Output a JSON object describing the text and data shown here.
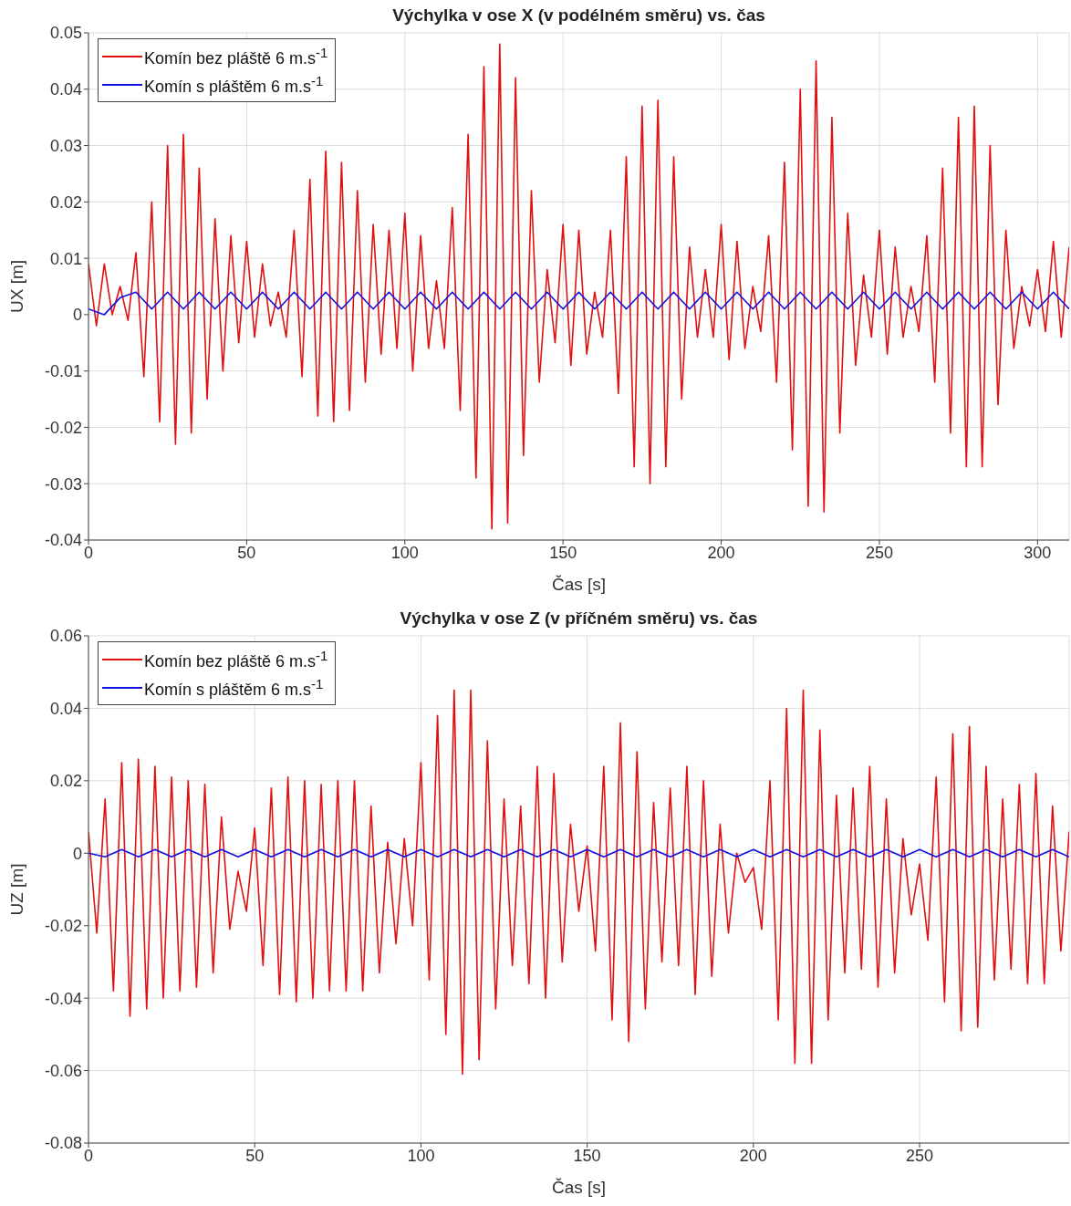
{
  "chart_data": [
    {
      "type": "line",
      "title": "Výchylka v ose X (v podélném směru) vs. čas",
      "xlabel": "Čas [s]",
      "ylabel": "UX [m]",
      "xlim": [
        0,
        310
      ],
      "xticks": [
        0,
        50,
        100,
        150,
        200,
        250,
        300
      ],
      "ylim": [
        -0.04,
        0.05
      ],
      "yticks": [
        -0.04,
        -0.03,
        -0.02,
        -0.01,
        0,
        0.01,
        0.02,
        0.03,
        0.04,
        0.05
      ],
      "grid": true,
      "legend": "top left",
      "line_style": "solid",
      "x": [
        0,
        2.5,
        5,
        7.5,
        10,
        12.5,
        15,
        17.5,
        20,
        22.5,
        25,
        27.5,
        30,
        32.5,
        35,
        37.5,
        40,
        42.5,
        45,
        47.5,
        50,
        52.5,
        55,
        57.5,
        60,
        62.5,
        65,
        67.5,
        70,
        72.5,
        75,
        77.5,
        80,
        82.5,
        85,
        87.5,
        90,
        92.5,
        95,
        97.5,
        100,
        102.5,
        105,
        107.5,
        110,
        112.5,
        115,
        117.5,
        120,
        122.5,
        125,
        127.5,
        130,
        132.5,
        135,
        137.5,
        140,
        142.5,
        145,
        147.5,
        150,
        152.5,
        155,
        157.5,
        160,
        162.5,
        165,
        167.5,
        170,
        172.5,
        175,
        177.5,
        180,
        182.5,
        185,
        187.5,
        190,
        192.5,
        195,
        197.5,
        200,
        202.5,
        205,
        207.5,
        210,
        212.5,
        215,
        217.5,
        220,
        222.5,
        225,
        227.5,
        230,
        232.5,
        235,
        237.5,
        240,
        242.5,
        245,
        247.5,
        250,
        252.5,
        255,
        257.5,
        260,
        262.5,
        265,
        267.5,
        270,
        272.5,
        275,
        277.5,
        280,
        282.5,
        285,
        287.5,
        290,
        292.5,
        295,
        297.5,
        300,
        302.5,
        305,
        307.5,
        310
      ],
      "series": [
        {
          "name": "Komín bez pláště 6 m.s$^{-1}$",
          "color": "#e01010",
          "values": [
            0.009,
            -0.002,
            0.009,
            0.0,
            0.005,
            -0.001,
            0.011,
            -0.011,
            0.02,
            -0.019,
            0.03,
            -0.023,
            0.032,
            -0.021,
            0.026,
            -0.015,
            0.017,
            -0.01,
            0.014,
            -0.005,
            0.013,
            -0.004,
            0.009,
            -0.002,
            0.004,
            -0.004,
            0.015,
            -0.011,
            0.024,
            -0.018,
            0.029,
            -0.019,
            0.027,
            -0.017,
            0.022,
            -0.012,
            0.016,
            -0.007,
            0.015,
            -0.006,
            0.018,
            -0.01,
            0.014,
            -0.006,
            0.006,
            -0.006,
            0.019,
            -0.017,
            0.032,
            -0.029,
            0.044,
            -0.038,
            0.048,
            -0.037,
            0.042,
            -0.025,
            0.022,
            -0.012,
            0.008,
            -0.005,
            0.016,
            -0.009,
            0.015,
            -0.007,
            0.004,
            -0.004,
            0.015,
            -0.014,
            0.028,
            -0.027,
            0.037,
            -0.03,
            0.038,
            -0.027,
            0.028,
            -0.015,
            0.012,
            -0.004,
            0.008,
            -0.004,
            0.016,
            -0.008,
            0.013,
            -0.006,
            0.005,
            -0.003,
            0.014,
            -0.012,
            0.027,
            -0.024,
            0.04,
            -0.034,
            0.045,
            -0.035,
            0.035,
            -0.021,
            0.018,
            -0.009,
            0.007,
            -0.004,
            0.015,
            -0.007,
            0.012,
            -0.004,
            0.005,
            -0.003,
            0.014,
            -0.012,
            0.026,
            -0.021,
            0.035,
            -0.027,
            0.037,
            -0.027,
            0.03,
            -0.016,
            0.015,
            -0.006,
            0.005,
            -0.002,
            0.008,
            -0.003,
            0.013,
            -0.004,
            0.012
          ]
        },
        {
          "name": "Komín s pláštěm 6 m.s$^{-1}$",
          "color": "#1010e0",
          "x": [
            0,
            5,
            10,
            15,
            20,
            25,
            30,
            35,
            40,
            45,
            50,
            55,
            60,
            65,
            70,
            75,
            80,
            85,
            90,
            95,
            100,
            105,
            110,
            115,
            120,
            125,
            130,
            135,
            140,
            145,
            150,
            155,
            160,
            165,
            170,
            175,
            180,
            185,
            190,
            195,
            200,
            205,
            210,
            215,
            220,
            225,
            230,
            235,
            240,
            245,
            250,
            255,
            260,
            265,
            270,
            275,
            280,
            285,
            290,
            295,
            300,
            305,
            310
          ],
          "values": [
            0.001,
            0.0,
            0.003,
            0.004,
            0.001,
            0.004,
            0.001,
            0.004,
            0.001,
            0.004,
            0.001,
            0.004,
            0.001,
            0.004,
            0.001,
            0.004,
            0.001,
            0.004,
            0.001,
            0.004,
            0.001,
            0.004,
            0.001,
            0.004,
            0.001,
            0.004,
            0.001,
            0.004,
            0.001,
            0.004,
            0.001,
            0.004,
            0.001,
            0.004,
            0.001,
            0.004,
            0.001,
            0.004,
            0.001,
            0.004,
            0.001,
            0.004,
            0.001,
            0.004,
            0.001,
            0.004,
            0.001,
            0.004,
            0.001,
            0.004,
            0.001,
            0.004,
            0.001,
            0.004,
            0.001,
            0.004,
            0.001,
            0.004,
            0.001,
            0.004,
            0.001,
            0.004,
            0.001
          ]
        }
      ]
    },
    {
      "type": "line",
      "title": "Výchylka v ose Z (v příčném směru) vs. čas",
      "xlabel": "Čas [s]",
      "ylabel": "UZ [m]",
      "xlim": [
        0,
        295
      ],
      "xticks": [
        0,
        50,
        100,
        150,
        200,
        250
      ],
      "ylim": [
        -0.08,
        0.06
      ],
      "yticks": [
        -0.08,
        -0.06,
        -0.04,
        -0.02,
        0,
        0.02,
        0.04,
        0.06
      ],
      "grid": true,
      "legend": "top left",
      "line_style": "solid",
      "x": [
        0,
        2.5,
        5,
        7.5,
        10,
        12.5,
        15,
        17.5,
        20,
        22.5,
        25,
        27.5,
        30,
        32.5,
        35,
        37.5,
        40,
        42.5,
        45,
        47.5,
        50,
        52.5,
        55,
        57.5,
        60,
        62.5,
        65,
        67.5,
        70,
        72.5,
        75,
        77.5,
        80,
        82.5,
        85,
        87.5,
        90,
        92.5,
        95,
        97.5,
        100,
        102.5,
        105,
        107.5,
        110,
        112.5,
        115,
        117.5,
        120,
        122.5,
        125,
        127.5,
        130,
        132.5,
        135,
        137.5,
        140,
        142.5,
        145,
        147.5,
        150,
        152.5,
        155,
        157.5,
        160,
        162.5,
        165,
        167.5,
        170,
        172.5,
        175,
        177.5,
        180,
        182.5,
        185,
        187.5,
        190,
        192.5,
        195,
        197.5,
        200,
        202.5,
        205,
        207.5,
        210,
        212.5,
        215,
        217.5,
        220,
        222.5,
        225,
        227.5,
        230,
        232.5,
        235,
        237.5,
        240,
        242.5,
        245,
        247.5,
        250,
        252.5,
        255,
        257.5,
        260,
        262.5,
        265,
        267.5,
        270,
        272.5,
        275,
        277.5,
        280,
        282.5,
        285,
        287.5,
        290,
        292.5,
        295
      ],
      "series": [
        {
          "name": "Komín bez pláště 6 m.s$^{-1}$",
          "color": "#e01010",
          "values": [
            0.006,
            -0.022,
            0.015,
            -0.038,
            0.025,
            -0.045,
            0.026,
            -0.043,
            0.024,
            -0.04,
            0.021,
            -0.038,
            0.02,
            -0.037,
            0.019,
            -0.033,
            0.01,
            -0.021,
            -0.005,
            -0.016,
            0.007,
            -0.031,
            0.018,
            -0.039,
            0.021,
            -0.041,
            0.02,
            -0.04,
            0.019,
            -0.038,
            0.02,
            -0.038,
            0.02,
            -0.038,
            0.013,
            -0.033,
            0.003,
            -0.025,
            0.004,
            -0.02,
            0.025,
            -0.035,
            0.038,
            -0.05,
            0.045,
            -0.061,
            0.045,
            -0.057,
            0.031,
            -0.043,
            0.015,
            -0.031,
            0.013,
            -0.036,
            0.024,
            -0.04,
            0.022,
            -0.03,
            0.008,
            -0.016,
            0.002,
            -0.027,
            0.024,
            -0.046,
            0.036,
            -0.052,
            0.028,
            -0.043,
            0.014,
            -0.03,
            0.018,
            -0.031,
            0.024,
            -0.039,
            0.02,
            -0.034,
            0.008,
            -0.022,
            0.0,
            -0.008,
            -0.004,
            -0.021,
            0.02,
            -0.046,
            0.04,
            -0.058,
            0.045,
            -0.058,
            0.034,
            -0.046,
            0.016,
            -0.033,
            0.018,
            -0.032,
            0.024,
            -0.037,
            0.015,
            -0.033,
            0.004,
            -0.017,
            -0.003,
            -0.024,
            0.021,
            -0.041,
            0.033,
            -0.049,
            0.035,
            -0.048,
            0.024,
            -0.035,
            0.015,
            -0.032,
            0.019,
            -0.036,
            0.022,
            -0.036,
            0.013,
            -0.027,
            0.006
          ]
        },
        {
          "name": "Komín s pláštěm 6 m.s$^{-1}$",
          "color": "#1010e0",
          "x": [
            0,
            5,
            10,
            15,
            20,
            25,
            30,
            35,
            40,
            45,
            50,
            55,
            60,
            65,
            70,
            75,
            80,
            85,
            90,
            95,
            100,
            105,
            110,
            115,
            120,
            125,
            130,
            135,
            140,
            145,
            150,
            155,
            160,
            165,
            170,
            175,
            180,
            185,
            190,
            195,
            200,
            205,
            210,
            215,
            220,
            225,
            230,
            235,
            240,
            245,
            250,
            255,
            260,
            265,
            270,
            275,
            280,
            285,
            290,
            295
          ],
          "values": [
            0.0,
            -0.001,
            0.001,
            -0.001,
            0.001,
            -0.001,
            0.001,
            -0.001,
            0.001,
            -0.001,
            0.001,
            -0.001,
            0.001,
            -0.001,
            0.001,
            -0.001,
            0.001,
            -0.001,
            0.001,
            -0.001,
            0.001,
            -0.001,
            0.001,
            -0.001,
            0.001,
            -0.001,
            0.001,
            -0.001,
            0.001,
            -0.001,
            0.001,
            -0.001,
            0.001,
            -0.001,
            0.001,
            -0.001,
            0.001,
            -0.001,
            0.001,
            -0.001,
            0.001,
            -0.001,
            0.001,
            -0.001,
            0.001,
            -0.001,
            0.001,
            -0.001,
            0.001,
            -0.001,
            0.001,
            -0.001,
            0.001,
            -0.001,
            0.001,
            -0.001,
            0.001,
            -0.001,
            0.001,
            -0.001
          ]
        }
      ]
    }
  ]
}
